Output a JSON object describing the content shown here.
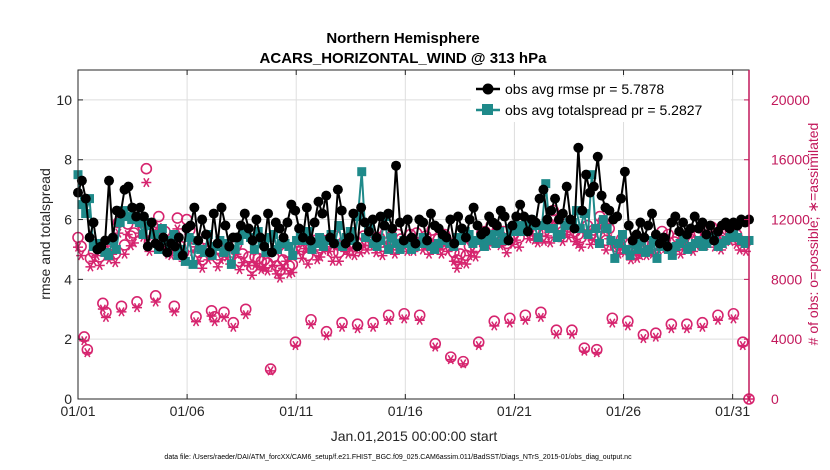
{
  "chart_data": {
    "type": "line",
    "title": "Northern Hemisphere",
    "subtitle": "ACARS_HORIZONTAL_WIND @ 313 hPa",
    "xlabel": "Jan.01,2015 00:00:00 start",
    "ylabel": "rmse and totalspread",
    "y2label": "# of obs: o=possible; ∗=assimilated",
    "xlim": [
      0,
      30.75
    ],
    "ylim": [
      0,
      11
    ],
    "y2lim": [
      0,
      22000
    ],
    "x_ticks": [
      0,
      5,
      10,
      15,
      20,
      25,
      30
    ],
    "x_tick_labels": [
      "01/01",
      "01/06",
      "01/11",
      "01/16",
      "01/21",
      "01/26",
      "01/31"
    ],
    "y_ticks": [
      0,
      2,
      4,
      6,
      8,
      10
    ],
    "y2_ticks": [
      0,
      4000,
      8000,
      12000,
      16000,
      20000
    ],
    "grid": true,
    "legend_position": "top-right",
    "footnote": "data file: /Users/raeder/DAI/ATM_forcXX/CAM6_setup/f.e21.FHIST_BGC.f09_025.CAM6assim.011/BadSST/Diags_NTrS_2015-01/obs_diag_output.nc",
    "series": [
      {
        "name": "obs avg rmse pr = 5.7878",
        "axis": "left",
        "color": "#000000",
        "marker": "circle",
        "values": [
          6.9,
          7.3,
          6.7,
          5.4,
          5.9,
          5.0,
          5.1,
          5.3,
          7.3,
          5.4,
          6.3,
          6.2,
          7.0,
          7.1,
          6.4,
          6.1,
          6.4,
          6.1,
          5.1,
          5.9,
          5.2,
          5.1,
          5.4,
          4.9,
          5.2,
          5.1,
          5.4,
          4.8,
          5.7,
          5.8,
          6.4,
          5.3,
          6.0,
          5.5,
          4.9,
          6.2,
          5.2,
          6.4,
          5.8,
          5.1,
          5.4,
          5.4,
          5.8,
          6.2,
          5.7,
          5.3,
          6.0,
          5.4,
          5.1,
          6.2,
          4.9,
          5.9,
          5.7,
          5.4,
          5.9,
          6.5,
          6.3,
          5.7,
          5.4,
          6.4,
          5.3,
          5.9,
          6.6,
          6.2,
          6.8,
          5.4,
          5.2,
          7.0,
          6.3,
          5.2,
          5.4,
          6.2,
          5.1,
          6.4,
          5.9,
          5.6,
          6.0,
          5.4,
          6.1,
          5.8,
          6.2,
          5.7,
          7.8,
          5.9,
          5.3,
          6.0,
          5.4,
          5.2,
          6.0,
          5.9,
          5.3,
          6.2,
          5.8,
          5.7,
          5.5,
          5.4,
          6.0,
          5.2,
          6.1,
          5.7,
          5.4,
          6.0,
          6.4,
          5.8,
          5.5,
          5.6,
          6.1,
          5.9,
          5.8,
          6.3,
          6.1,
          5.3,
          5.8,
          6.1,
          6.5,
          6.1,
          5.6,
          6.0,
          5.9,
          6.7,
          7.0,
          6.0,
          6.3,
          6.7,
          6.0,
          6.2,
          7.1,
          6.0,
          5.7,
          8.4,
          6.3,
          7.5,
          6.9,
          7.1,
          8.1,
          6.8,
          6.4,
          6.3,
          6.0,
          6.1,
          6.7,
          7.6,
          5.8,
          5.3,
          5.5,
          5.9,
          5.4,
          5.8,
          6.2,
          5.5,
          5.2,
          5.4,
          5.1,
          5.9,
          6.1,
          5.6,
          5.9,
          5.5,
          5.7,
          6.1,
          5.7,
          5.9,
          5.5,
          5.8,
          5.3,
          5.6,
          5.8,
          5.9,
          5.7,
          5.9,
          5.8,
          6.0,
          5.9,
          6.0
        ]
      },
      {
        "name": "obs avg totalspread pr = 5.2827",
        "axis": "left",
        "color": "#1f8a8a",
        "marker": "square",
        "values": [
          7.5,
          6.5,
          6.2,
          6.7,
          5.1,
          5.2,
          5.0,
          4.9,
          4.8,
          5.3,
          5.0,
          5.9,
          6.3,
          6.1,
          6.0,
          6.1,
          5.9,
          5.5,
          5.8,
          5.9,
          5.5,
          5.0,
          5.7,
          5.3,
          5.2,
          5.5,
          4.8,
          5.0,
          4.6,
          5.4,
          4.5,
          5.3,
          5.0,
          4.9,
          5.5,
          4.8,
          5.1,
          5.3,
          4.9,
          5.2,
          4.5,
          5.0,
          5.3,
          5.6,
          5.5,
          5.4,
          5.0,
          5.6,
          5.2,
          4.9,
          5.4,
          5.5,
          5.0,
          5.2,
          5.2,
          5.1,
          4.8,
          5.3,
          5.5,
          5.3,
          5.6,
          5.0,
          5.2,
          5.4,
          5.1,
          5.3,
          5.5,
          5.2,
          5.8,
          5.1,
          5.4,
          5.6,
          5.3,
          6.1,
          7.6,
          5.4,
          5.7,
          5.2,
          5.1,
          5.3,
          6.1,
          5.0,
          5.4,
          5.2,
          5.0,
          5.3,
          5.2,
          5.0,
          5.1,
          5.2,
          5.4,
          5.2,
          5.1,
          5.0,
          5.2,
          5.4,
          5.3,
          5.2,
          5.1,
          5.4,
          5.3,
          5.6,
          5.5,
          5.2,
          5.3,
          5.4,
          5.1,
          5.3,
          5.5,
          5.2,
          5.6,
          5.3,
          5.4,
          5.7,
          5.6,
          5.8,
          5.6,
          5.9,
          6.0,
          5.8,
          5.4,
          5.8,
          7.2,
          5.7,
          5.7,
          5.4,
          5.5,
          5.8,
          5.9,
          5.9,
          6.3,
          5.7,
          6.2,
          5.5,
          7.5,
          5.7,
          5.2,
          6.0,
          5.7,
          5.3,
          4.7,
          5.2,
          5.5,
          5.0,
          4.8,
          5.2,
          5.0,
          5.3,
          4.9,
          5.0,
          5.3,
          4.7,
          5.1,
          5.3,
          5.0,
          4.8,
          5.1,
          5.2,
          5.4,
          5.0,
          5.1,
          5.2,
          5.3,
          5.1,
          5.2,
          5.4,
          5.3,
          5.1,
          5.2,
          5.3,
          5.4,
          5.5,
          5.4,
          5.3,
          5.2,
          5.3
        ]
      },
      {
        "name": "possible obs count",
        "axis": "right",
        "color": "#d6246e",
        "marker": "open-circle",
        "values": [
          10800,
          10200,
          4150,
          3300,
          9400,
          9800,
          10200,
          9500,
          6400,
          5800,
          9900,
          10300,
          9700,
          11800,
          6200,
          10300,
          11700,
          10900,
          11100,
          6500,
          11800,
          11500,
          15400,
          10500,
          11600,
          6900,
          12200,
          10800,
          11200,
          10300,
          10200,
          6200,
          12100,
          10200,
          9800,
          12000,
          11300,
          10500,
          5500,
          9800,
          9300,
          10700,
          9900,
          5900,
          5500,
          9400,
          9900,
          5800,
          10100,
          9600,
          5100,
          10300,
          9200,
          9700,
          6000,
          9500,
          8800,
          9500,
          9400,
          9200,
          9300,
          9100,
          2000,
          9500,
          8900,
          8600,
          9300,
          9800,
          8900,
          9000,
          3800,
          10500,
          10000,
          10700,
          9600,
          5300,
          10600,
          9900,
          10100,
          10600,
          4500,
          10500,
          9800,
          10900,
          9800,
          5100,
          10500,
          10300,
          10700,
          10200,
          5000,
          10400,
          10900,
          10600,
          10900,
          5100,
          10400,
          10800,
          10200,
          11100,
          5600,
          10900,
          10300,
          11000,
          10700,
          5700,
          10500,
          11000,
          10500,
          11100,
          5600,
          10600,
          10900,
          10300,
          11300,
          3700,
          10700,
          10300,
          11000,
          10500,
          2800,
          9800,
          9300,
          9700,
          2500,
          9600,
          10200,
          10500,
          10100,
          3800,
          11100,
          11200,
          10900,
          11600,
          5200,
          11300,
          10900,
          11200,
          10400,
          5400,
          11000,
          11300,
          10800,
          11900,
          5600,
          11400,
          11700,
          11300,
          11100,
          5800,
          11200,
          11600,
          11100,
          12600,
          4600,
          11500,
          11200,
          11700,
          11500,
          4600,
          11200,
          11000,
          10800,
          3400,
          11600,
          11000,
          11300,
          3300,
          12200,
          11900,
          10600,
          11400,
          5400,
          10200,
          10300,
          10700,
          10400,
          5200,
          9900,
          10400,
          10000,
          10200,
          4300,
          10200,
          10400,
          10300,
          4400,
          10600,
          11200,
          10700,
          11000,
          5000,
          10500,
          10800,
          10300,
          10900,
          5000,
          10700,
          10500,
          10900,
          11100,
          5100,
          10900,
          11300,
          11500,
          10800,
          5600,
          10600,
          11000,
          11300,
          11200,
          5700,
          11000,
          10600,
          3800,
          10500,
          0
        ]
      },
      {
        "name": "assimilated obs count",
        "axis": "right",
        "color": "#d6246e",
        "marker": "asterisk"
      }
    ]
  }
}
